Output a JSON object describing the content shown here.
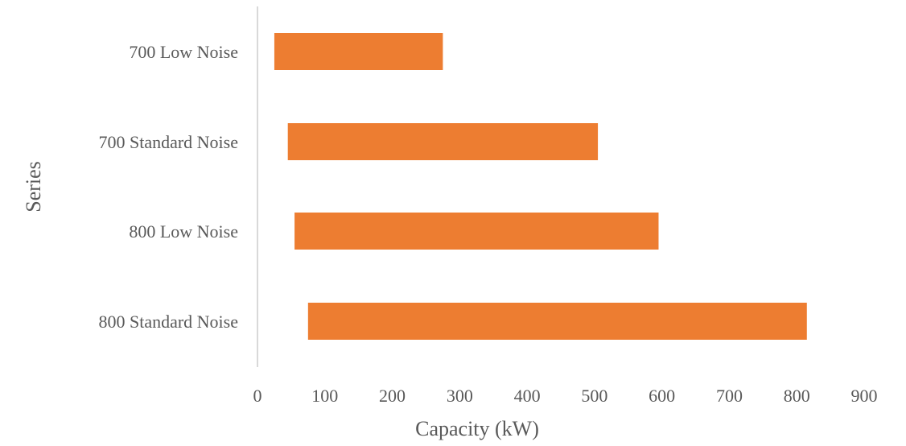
{
  "chart_data": {
    "type": "bar",
    "orientation": "horizontal",
    "variant": "floating-range",
    "categories": [
      "700 Low Noise",
      "700 Standard Noise",
      "800 Low Noise",
      "800 Standard Noise"
    ],
    "series": [
      {
        "start": [
          25,
          45,
          55,
          75
        ],
        "end": [
          275,
          505,
          595,
          815
        ]
      }
    ],
    "xlabel": "Capacity (kW)",
    "ylabel": "Series",
    "xlim": [
      0,
      900
    ],
    "xticks": [
      0,
      100,
      200,
      300,
      400,
      500,
      600,
      700,
      800,
      900
    ],
    "grid": false,
    "legend": "none",
    "colors": {
      "bar": "#ED7D31",
      "axis_line": "#D9D9D9",
      "text": "#595959"
    }
  }
}
